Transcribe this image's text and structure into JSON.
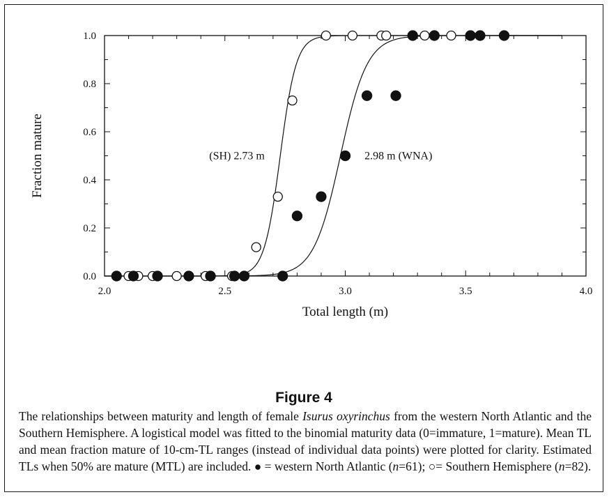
{
  "chart_data": {
    "type": "scatter",
    "xlabel": "Total length (m)",
    "ylabel": "Fraction mature",
    "xlim": [
      2.0,
      4.0
    ],
    "ylim": [
      0.0,
      1.0
    ],
    "x_ticks": [
      "2.0",
      "2.5",
      "3.0",
      "3.5",
      "4.0"
    ],
    "y_ticks": [
      "0.0",
      "0.2",
      "0.4",
      "0.6",
      "0.8",
      "1.0"
    ],
    "grid": false,
    "series": [
      {
        "name": "Southern Hemisphere",
        "marker": "open-circle",
        "points": [
          [
            2.1,
            0.0
          ],
          [
            2.14,
            0.0
          ],
          [
            2.2,
            0.0
          ],
          [
            2.3,
            0.0
          ],
          [
            2.42,
            0.0
          ],
          [
            2.53,
            0.0
          ],
          [
            2.63,
            0.12
          ],
          [
            2.72,
            0.33
          ],
          [
            2.78,
            0.73
          ],
          [
            2.92,
            1.0
          ],
          [
            3.03,
            1.0
          ],
          [
            3.15,
            1.0
          ],
          [
            3.17,
            1.0
          ],
          [
            3.33,
            1.0
          ],
          [
            3.44,
            1.0
          ]
        ],
        "curve": {
          "model": "logistic",
          "x50": 2.73,
          "k": 30
        }
      },
      {
        "name": "western North Atlantic",
        "marker": "filled-circle",
        "points": [
          [
            2.05,
            0.0
          ],
          [
            2.12,
            0.0
          ],
          [
            2.22,
            0.0
          ],
          [
            2.35,
            0.0
          ],
          [
            2.44,
            0.0
          ],
          [
            2.54,
            0.0
          ],
          [
            2.58,
            0.0
          ],
          [
            2.74,
            0.0
          ],
          [
            2.8,
            0.25
          ],
          [
            2.9,
            0.33
          ],
          [
            3.0,
            0.5
          ],
          [
            3.09,
            0.75
          ],
          [
            3.21,
            0.75
          ],
          [
            3.28,
            1.0
          ],
          [
            3.37,
            1.0
          ],
          [
            3.52,
            1.0
          ],
          [
            3.56,
            1.0
          ],
          [
            3.66,
            1.0
          ]
        ],
        "curve": {
          "model": "logistic",
          "x50": 2.98,
          "k": 18
        }
      }
    ],
    "annotations": [
      {
        "text": "(SH) 2.73 m",
        "x": 2.55,
        "y": 0.5
      },
      {
        "text": "2.98 m (WNA)",
        "x": 3.08,
        "y": 0.5
      }
    ]
  },
  "figure_title": "Figure 4",
  "caption": {
    "part1": "The relationships between maturity and length of female ",
    "species": "Isurus oxyrinchus",
    "part2": " from the western North Atlantic and the Southern Hemisphere. A logistical model was fitted to the binomial maturity data (0=immature, 1=mature). Mean TL and mean fraction mature of 10-cm-TL ranges (instead of individual data points) were plotted for clarity. Estimated TLs when 50% are mature (MTL) are included. ",
    "filled_symbol": "●",
    "part3": " = western North Atlantic (",
    "n_symbol": "n",
    "part4": "=61); ",
    "open_symbol": "○",
    "part5": "= Southern Hemisphere (",
    "part6": "=82)."
  }
}
